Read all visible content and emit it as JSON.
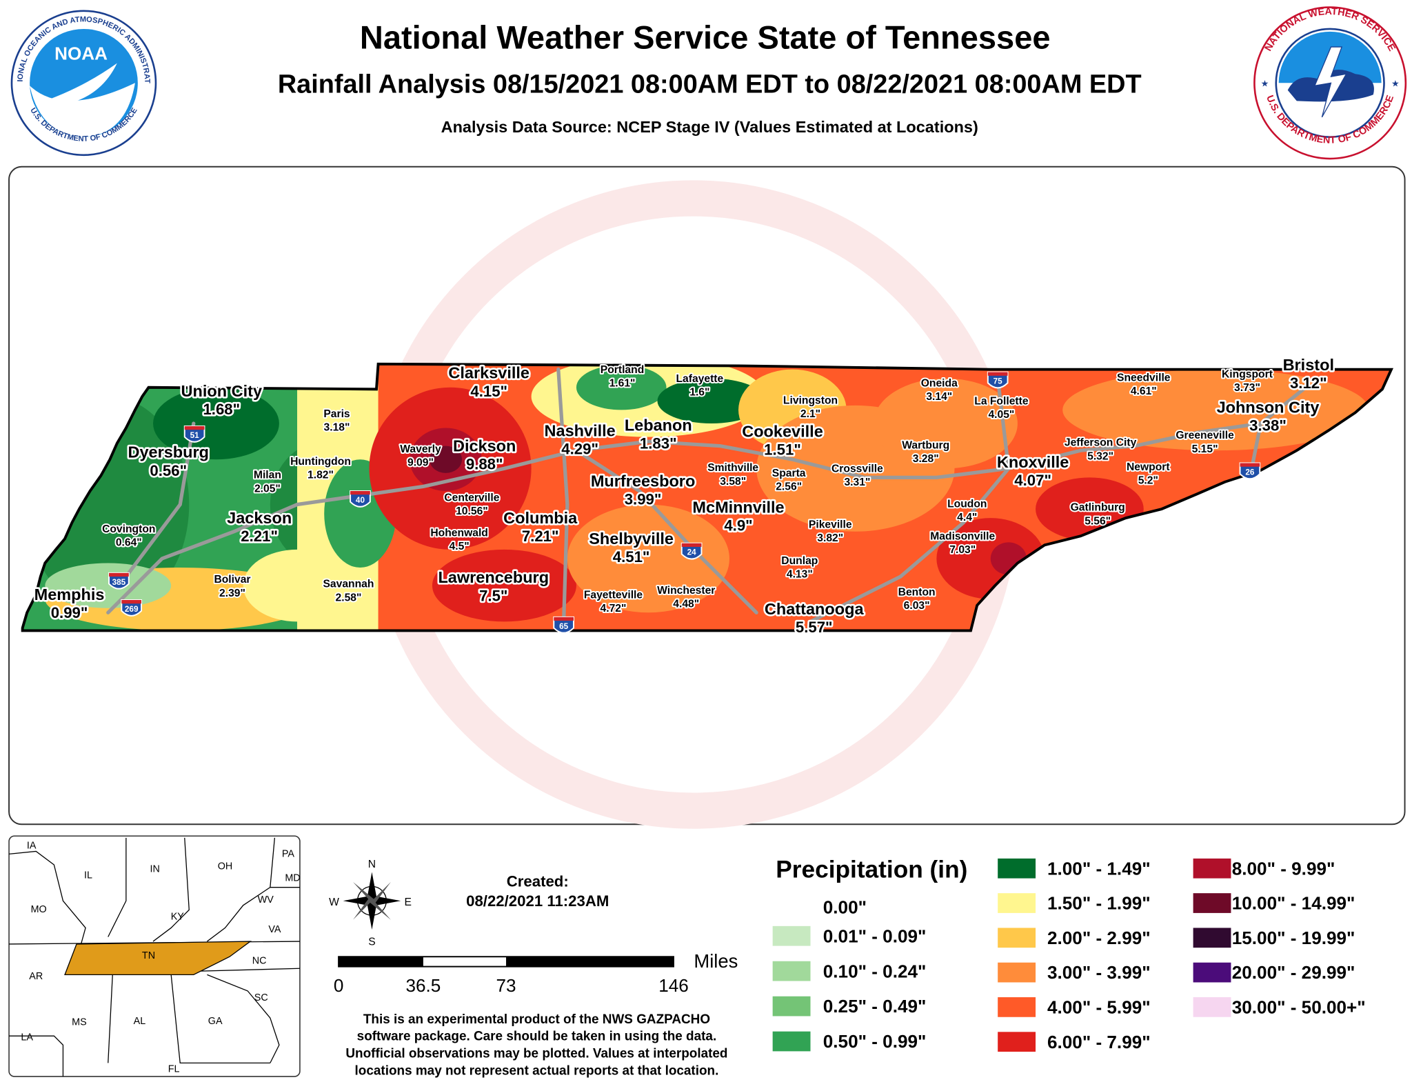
{
  "header": {
    "title": "National Weather Service State of Tennessee",
    "subtitle": "Rainfall Analysis 08/15/2021 08:00AM EDT to 08/22/2021 08:00AM EDT",
    "source": "Analysis Data Source: NCEP Stage IV (Values Estimated at Locations)"
  },
  "logos": {
    "noaa": {
      "abbr": "NOAA",
      "ring_top": "NATIONAL OCEANIC AND ATMOSPHERIC ADMINISTRATION",
      "ring_bottom": "U.S. DEPARTMENT OF COMMERCE"
    },
    "nws": {
      "ring_top": "NATIONAL WEATHER SERVICE",
      "ring_bottom": "U.S. DEPARTMENT OF COMMERCE"
    }
  },
  "map": {
    "cities": [
      {
        "name": "Clarksville",
        "value": "4.15\""
      },
      {
        "name": "Portland",
        "value": "1.61\""
      },
      {
        "name": "Lafayette",
        "value": "1.6\""
      },
      {
        "name": "Union City",
        "value": "1.68\""
      },
      {
        "name": "Livingston",
        "value": "2.1\""
      },
      {
        "name": "Oneida",
        "value": "3.14\""
      },
      {
        "name": "La Follette",
        "value": "4.05\""
      },
      {
        "name": "Sneedville",
        "value": "4.61\""
      },
      {
        "name": "Kingsport",
        "value": "3.73\""
      },
      {
        "name": "Bristol",
        "value": "3.12\""
      },
      {
        "name": "Paris",
        "value": "3.18\""
      },
      {
        "name": "Nashville",
        "value": "4.29\""
      },
      {
        "name": "Lebanon",
        "value": "1.83\""
      },
      {
        "name": "Cookeville",
        "value": "1.51\""
      },
      {
        "name": "Johnson City",
        "value": "3.38\""
      },
      {
        "name": "Waverly",
        "value": "9.09\""
      },
      {
        "name": "Dickson",
        "value": "9.88\""
      },
      {
        "name": "Huntingdon",
        "value": "1.82\""
      },
      {
        "name": "Dyersburg",
        "value": "0.56\""
      },
      {
        "name": "Wartburg",
        "value": "3.28\""
      },
      {
        "name": "Jefferson City",
        "value": "5.32\""
      },
      {
        "name": "Greeneville",
        "value": "5.15\""
      },
      {
        "name": "Milan",
        "value": "2.05\""
      },
      {
        "name": "Smithville",
        "value": "3.58\""
      },
      {
        "name": "Sparta",
        "value": "2.56\""
      },
      {
        "name": "Crossville",
        "value": "3.31\""
      },
      {
        "name": "Knoxville",
        "value": "4.07\""
      },
      {
        "name": "Newport",
        "value": "5.2\""
      },
      {
        "name": "Murfreesboro",
        "value": "3.99\""
      },
      {
        "name": "Centerville",
        "value": "10.56\""
      },
      {
        "name": "Jackson",
        "value": "2.21\""
      },
      {
        "name": "Loudon",
        "value": "4.4\""
      },
      {
        "name": "Gatlinburg",
        "value": "5.56\""
      },
      {
        "name": "McMinnville",
        "value": "4.9\""
      },
      {
        "name": "Columbia",
        "value": "7.21\""
      },
      {
        "name": "Pikeville",
        "value": "3.82\""
      },
      {
        "name": "Covington",
        "value": "0.64\""
      },
      {
        "name": "Hohenwald",
        "value": "4.5\""
      },
      {
        "name": "Madisonville",
        "value": "7.03\""
      },
      {
        "name": "Shelbyville",
        "value": "4.51\""
      },
      {
        "name": "Dunlap",
        "value": "4.13\""
      },
      {
        "name": "Lawrenceburg",
        "value": "7.5\""
      },
      {
        "name": "Bolivar",
        "value": "2.39\""
      },
      {
        "name": "Savannah",
        "value": "2.58\""
      },
      {
        "name": "Benton",
        "value": "6.03\""
      },
      {
        "name": "Fayetteville",
        "value": "4.72\""
      },
      {
        "name": "Winchester",
        "value": "4.48\""
      },
      {
        "name": "Memphis",
        "value": "0.99\""
      },
      {
        "name": "Chattanooga",
        "value": "5.57\""
      }
    ],
    "interstates": [
      "51",
      "40",
      "385",
      "269",
      "65",
      "24",
      "75",
      "26"
    ]
  },
  "inset": {
    "states": [
      "IA",
      "IL",
      "IN",
      "OH",
      "PA",
      "MD",
      "MO",
      "KY",
      "WV",
      "VA",
      "TN",
      "NC",
      "AR",
      "MS",
      "AL",
      "GA",
      "SC",
      "LA",
      "FL"
    ]
  },
  "compass": {
    "north": "N",
    "south": "S",
    "east": "E",
    "west": "W"
  },
  "scale": {
    "ticks": [
      "0",
      "36.5",
      "73",
      "146"
    ],
    "unit": "Miles"
  },
  "created": {
    "label": "Created:",
    "timestamp": "08/22/2021 11:23AM"
  },
  "legend": {
    "title": "Precipitation (in)",
    "entries": [
      {
        "label": "0.00\""
      },
      {
        "label": "0.01\" - 0.09\"",
        "color": "#c7e9c0"
      },
      {
        "label": "0.10\" - 0.24\"",
        "color": "#a1d99b"
      },
      {
        "label": "0.25\" - 0.49\"",
        "color": "#74c476"
      },
      {
        "label": "0.50\" - 0.99\"",
        "color": "#31a354"
      },
      {
        "label": "1.00\" - 1.49\"",
        "color": "#006d2c"
      },
      {
        "label": "1.50\" - 1.99\"",
        "color": "#fff68f"
      },
      {
        "label": "2.00\" - 2.99\"",
        "color": "#ffc84a"
      },
      {
        "label": "3.00\" - 3.99\"",
        "color": "#ff8c3a"
      },
      {
        "label": "4.00\" - 5.99\"",
        "color": "#ff5a28"
      },
      {
        "label": "6.00\" - 7.99\"",
        "color": "#e0201c"
      },
      {
        "label": "8.00\" - 9.99\"",
        "color": "#b0102a"
      },
      {
        "label": "10.00\" - 14.99\"",
        "color": "#6e0a28"
      },
      {
        "label": "15.00\" - 19.99\"",
        "color": "#300a30"
      },
      {
        "label": "20.00\" - 29.99\"",
        "color": "#4b0c7a"
      },
      {
        "label": "30.00\" - 50.00+\"",
        "color": "#f6d6f0"
      }
    ]
  },
  "disclaimer": [
    "This is an experimental product of the NWS GAZPACHO",
    "software package. Care should be taken in using the data.",
    "Unofficial observations may be plotted. Values at interpolated",
    "locations may not represent actual reports at that location."
  ]
}
